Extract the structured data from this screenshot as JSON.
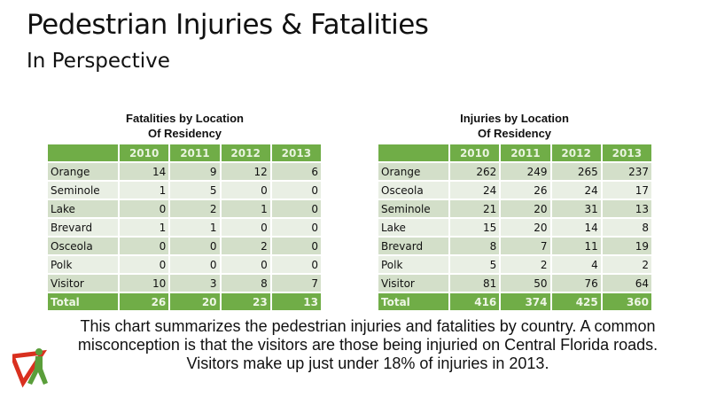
{
  "title": "Pedestrian Injuries & Fatalities",
  "subtitle": "In Perspective",
  "fatalities": {
    "caption_line1": "Fatalities by Location",
    "caption_line2": "Of Residency",
    "headers": [
      "",
      "2010",
      "2011",
      "2012",
      "2013"
    ],
    "rows": [
      [
        "Orange",
        "14",
        "9",
        "12",
        "6"
      ],
      [
        "Seminole",
        "1",
        "5",
        "0",
        "0"
      ],
      [
        "Lake",
        "0",
        "2",
        "1",
        "0"
      ],
      [
        "Brevard",
        "1",
        "1",
        "0",
        "0"
      ],
      [
        "Osceola",
        "0",
        "0",
        "2",
        "0"
      ],
      [
        "Polk",
        "0",
        "0",
        "0",
        "0"
      ],
      [
        "Visitor",
        "10",
        "3",
        "8",
        "7"
      ]
    ],
    "total": [
      "Total",
      "26",
      "20",
      "23",
      "13"
    ]
  },
  "injuries": {
    "caption_line1": "Injuries by Location",
    "caption_line2": "Of Residency",
    "headers": [
      "",
      "2010",
      "2011",
      "2012",
      "2013"
    ],
    "rows": [
      [
        "Orange",
        "262",
        "249",
        "265",
        "237"
      ],
      [
        "Osceola",
        "24",
        "26",
        "24",
        "17"
      ],
      [
        "Seminole",
        "21",
        "20",
        "31",
        "13"
      ],
      [
        "Lake",
        "15",
        "20",
        "14",
        "8"
      ],
      [
        "Brevard",
        "8",
        "7",
        "11",
        "19"
      ],
      [
        "Polk",
        "5",
        "2",
        "4",
        "2"
      ],
      [
        "Visitor",
        "81",
        "50",
        "76",
        "64"
      ]
    ],
    "total": [
      "Total",
      "416",
      "374",
      "425",
      "360"
    ]
  },
  "note_lines": [
    "This chart summarizes the pedestrian injuries and fatalities by country. A common",
    "misconception is that the visitors are those being injuried on Central Florida roads.",
    "Visitors make up just under 18% of injuries in 2013."
  ],
  "colors": {
    "header_green": "#70ad47",
    "row_dark": "#d3dfc9",
    "row_light": "#e9efe4"
  }
}
